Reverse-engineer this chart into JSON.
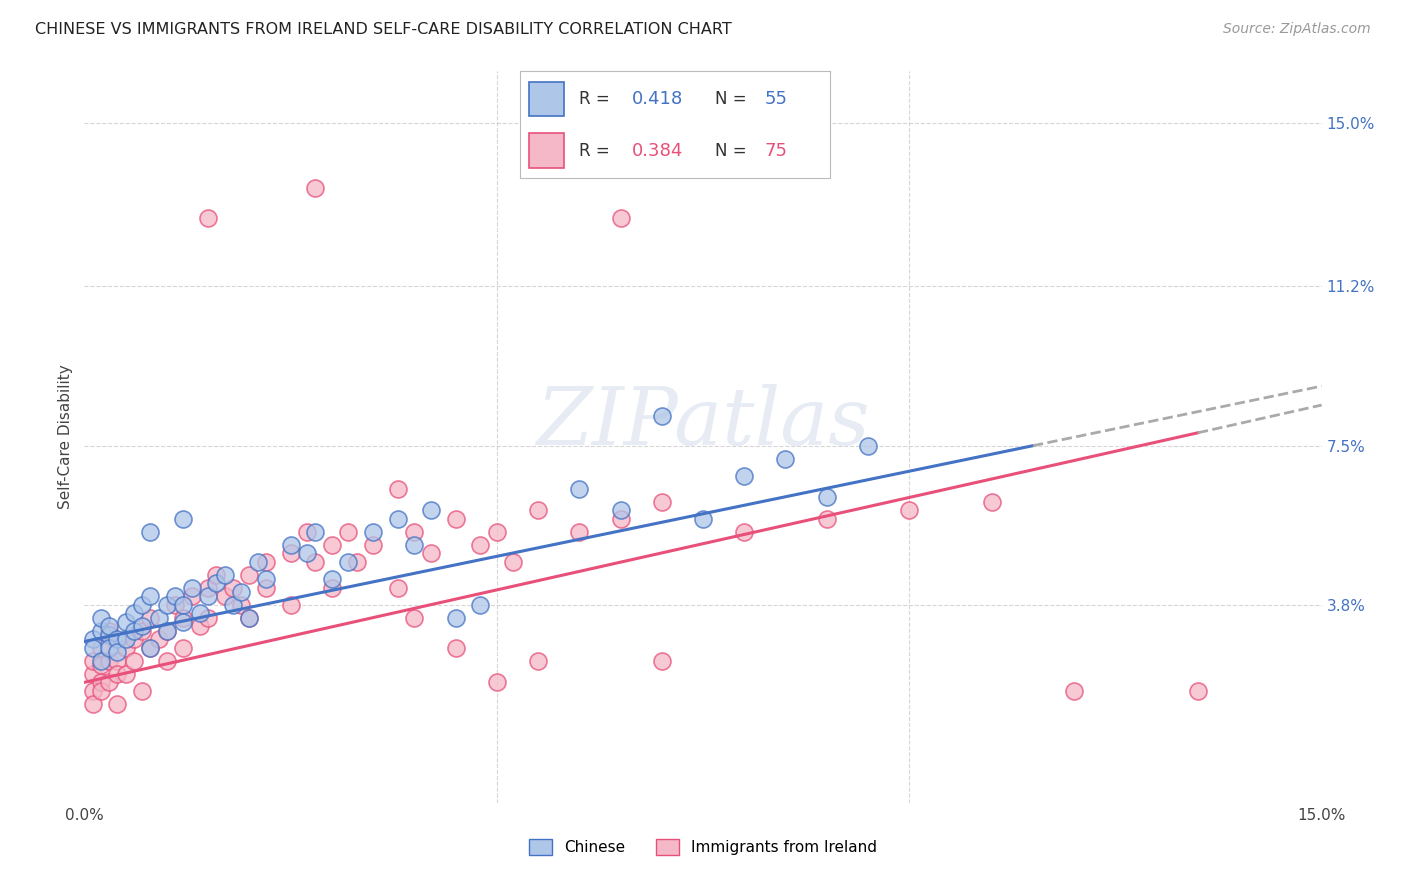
{
  "title": "CHINESE VS IMMIGRANTS FROM IRELAND SELF-CARE DISABILITY CORRELATION CHART",
  "source": "Source: ZipAtlas.com",
  "ylabel": "Self-Care Disability",
  "xlabel": "",
  "xlim": [
    0.0,
    0.15
  ],
  "ylim": [
    -0.008,
    0.162
  ],
  "ytick_positions": [
    0.0,
    0.038,
    0.075,
    0.112,
    0.15
  ],
  "ytick_labels": [
    "",
    "3.8%",
    "7.5%",
    "11.2%",
    "15.0%"
  ],
  "grid_color": "#cccccc",
  "background_color": "#ffffff",
  "chinese_color": "#aec6e8",
  "ireland_color": "#f4b8c8",
  "chinese_line_color": "#4472c4",
  "ireland_line_color": "#e8507a",
  "dash_color": "#aaaaaa",
  "chinese_R": 0.418,
  "chinese_N": 55,
  "ireland_R": 0.384,
  "ireland_N": 75,
  "watermark": "ZIPatlas",
  "chinese_scatter": [
    [
      0.001,
      0.03
    ],
    [
      0.001,
      0.028
    ],
    [
      0.002,
      0.032
    ],
    [
      0.002,
      0.035
    ],
    [
      0.002,
      0.025
    ],
    [
      0.003,
      0.031
    ],
    [
      0.003,
      0.028
    ],
    [
      0.003,
      0.033
    ],
    [
      0.004,
      0.03
    ],
    [
      0.004,
      0.027
    ],
    [
      0.005,
      0.034
    ],
    [
      0.005,
      0.03
    ],
    [
      0.006,
      0.036
    ],
    [
      0.006,
      0.032
    ],
    [
      0.007,
      0.038
    ],
    [
      0.007,
      0.033
    ],
    [
      0.008,
      0.04
    ],
    [
      0.008,
      0.028
    ],
    [
      0.009,
      0.035
    ],
    [
      0.01,
      0.038
    ],
    [
      0.01,
      0.032
    ],
    [
      0.011,
      0.04
    ],
    [
      0.012,
      0.038
    ],
    [
      0.012,
      0.034
    ],
    [
      0.013,
      0.042
    ],
    [
      0.014,
      0.036
    ],
    [
      0.015,
      0.04
    ],
    [
      0.016,
      0.043
    ],
    [
      0.017,
      0.045
    ],
    [
      0.018,
      0.038
    ],
    [
      0.019,
      0.041
    ],
    [
      0.02,
      0.035
    ],
    [
      0.021,
      0.048
    ],
    [
      0.022,
      0.044
    ],
    [
      0.025,
      0.052
    ],
    [
      0.027,
      0.05
    ],
    [
      0.028,
      0.055
    ],
    [
      0.03,
      0.044
    ],
    [
      0.032,
      0.048
    ],
    [
      0.035,
      0.055
    ],
    [
      0.038,
      0.058
    ],
    [
      0.04,
      0.052
    ],
    [
      0.042,
      0.06
    ],
    [
      0.045,
      0.035
    ],
    [
      0.048,
      0.038
    ],
    [
      0.06,
      0.065
    ],
    [
      0.065,
      0.06
    ],
    [
      0.07,
      0.082
    ],
    [
      0.075,
      0.058
    ],
    [
      0.08,
      0.068
    ],
    [
      0.085,
      0.072
    ],
    [
      0.09,
      0.063
    ],
    [
      0.008,
      0.055
    ],
    [
      0.012,
      0.058
    ],
    [
      0.095,
      0.075
    ]
  ],
  "ireland_scatter": [
    [
      0.001,
      0.022
    ],
    [
      0.001,
      0.018
    ],
    [
      0.001,
      0.025
    ],
    [
      0.001,
      0.015
    ],
    [
      0.002,
      0.02
    ],
    [
      0.002,
      0.028
    ],
    [
      0.002,
      0.024
    ],
    [
      0.002,
      0.018
    ],
    [
      0.003,
      0.025
    ],
    [
      0.003,
      0.02
    ],
    [
      0.003,
      0.032
    ],
    [
      0.004,
      0.025
    ],
    [
      0.004,
      0.022
    ],
    [
      0.004,
      0.015
    ],
    [
      0.005,
      0.028
    ],
    [
      0.005,
      0.022
    ],
    [
      0.006,
      0.03
    ],
    [
      0.006,
      0.025
    ],
    [
      0.007,
      0.032
    ],
    [
      0.007,
      0.018
    ],
    [
      0.008,
      0.035
    ],
    [
      0.008,
      0.028
    ],
    [
      0.009,
      0.03
    ],
    [
      0.01,
      0.032
    ],
    [
      0.01,
      0.025
    ],
    [
      0.011,
      0.038
    ],
    [
      0.012,
      0.035
    ],
    [
      0.012,
      0.028
    ],
    [
      0.013,
      0.04
    ],
    [
      0.014,
      0.033
    ],
    [
      0.015,
      0.042
    ],
    [
      0.015,
      0.035
    ],
    [
      0.016,
      0.045
    ],
    [
      0.017,
      0.04
    ],
    [
      0.018,
      0.042
    ],
    [
      0.019,
      0.038
    ],
    [
      0.02,
      0.045
    ],
    [
      0.02,
      0.035
    ],
    [
      0.022,
      0.048
    ],
    [
      0.022,
      0.042
    ],
    [
      0.025,
      0.05
    ],
    [
      0.025,
      0.038
    ],
    [
      0.027,
      0.055
    ],
    [
      0.028,
      0.048
    ],
    [
      0.03,
      0.052
    ],
    [
      0.03,
      0.042
    ],
    [
      0.032,
      0.055
    ],
    [
      0.033,
      0.048
    ],
    [
      0.035,
      0.052
    ],
    [
      0.038,
      0.042
    ],
    [
      0.04,
      0.055
    ],
    [
      0.042,
      0.05
    ],
    [
      0.045,
      0.058
    ],
    [
      0.048,
      0.052
    ],
    [
      0.05,
      0.055
    ],
    [
      0.052,
      0.048
    ],
    [
      0.055,
      0.06
    ],
    [
      0.06,
      0.055
    ],
    [
      0.065,
      0.058
    ],
    [
      0.07,
      0.062
    ],
    [
      0.038,
      0.065
    ],
    [
      0.015,
      0.128
    ],
    [
      0.028,
      0.135
    ],
    [
      0.065,
      0.128
    ],
    [
      0.08,
      0.055
    ],
    [
      0.09,
      0.058
    ],
    [
      0.1,
      0.06
    ],
    [
      0.11,
      0.062
    ],
    [
      0.04,
      0.035
    ],
    [
      0.045,
      0.028
    ],
    [
      0.05,
      0.02
    ],
    [
      0.055,
      0.025
    ],
    [
      0.07,
      0.025
    ],
    [
      0.12,
      0.018
    ],
    [
      0.135,
      0.018
    ]
  ],
  "chinese_line": {
    "x0": 0.0,
    "y0": 0.0295,
    "x1": 0.115,
    "y1": 0.075
  },
  "ireland_line": {
    "x0": 0.0,
    "y0": 0.02,
    "x1": 0.135,
    "y1": 0.078
  }
}
